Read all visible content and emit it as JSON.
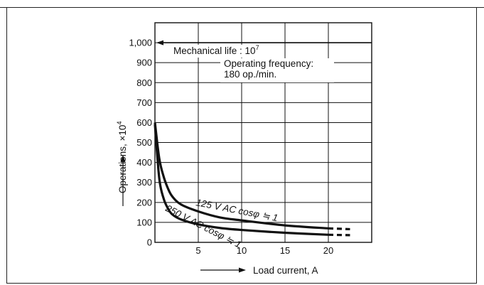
{
  "chart_data": {
    "type": "line",
    "title": "",
    "xlabel": "Load current, A",
    "ylabel": "Operations, ×10",
    "ylabel_exponent": "4",
    "x_ticks": [
      "5",
      "10",
      "15",
      "20"
    ],
    "y_ticks": [
      "0",
      "100",
      "200",
      "300",
      "400",
      "500",
      "600",
      "700",
      "800",
      "900",
      "1,000"
    ],
    "xlim": [
      0,
      25
    ],
    "ylim": [
      0,
      1100
    ],
    "grid": true,
    "mechanical_life": {
      "label": "Mechanical life : 10",
      "exponent": "7",
      "y": 1000
    },
    "annotation": {
      "line1": "Operating frequency:",
      "line2": "180 op./min."
    },
    "series": [
      {
        "name": "125 V AC cosφ ≒ 1",
        "x": [
          0,
          0.5,
          1,
          1.5,
          2,
          3,
          5,
          7.5,
          10,
          15,
          20
        ],
        "y": [
          600,
          420,
          330,
          270,
          230,
          190,
          155,
          125,
          110,
          85,
          70
        ],
        "dashed_extension": {
          "x": [
            20,
            22.5
          ],
          "y": [
            70,
            66
          ]
        }
      },
      {
        "name": "250 V AC cosφ ≒ 1",
        "x": [
          0,
          0.5,
          1,
          1.5,
          2,
          3,
          5,
          7.5,
          10,
          15,
          20
        ],
        "y": [
          590,
          320,
          220,
          170,
          140,
          115,
          90,
          72,
          62,
          48,
          38
        ],
        "dashed_extension": {
          "x": [
            20,
            22.5
          ],
          "y": [
            38,
            36
          ]
        }
      }
    ]
  }
}
